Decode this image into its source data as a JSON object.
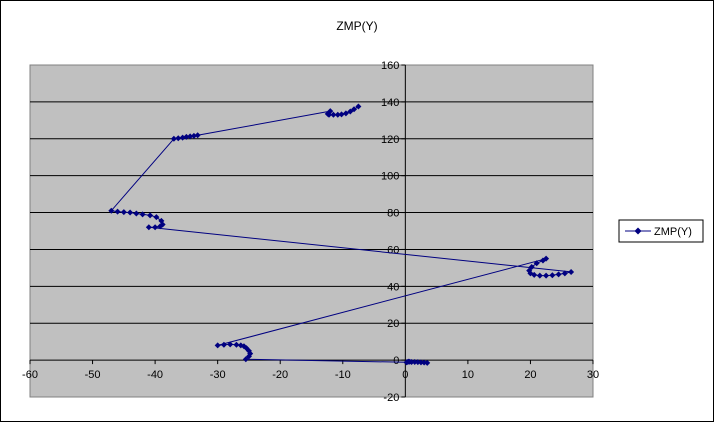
{
  "chart_data": {
    "type": "scatter",
    "title": "ZMP(Y)",
    "xlabel": "",
    "ylabel": "",
    "xlim": [
      -60,
      30
    ],
    "ylim": [
      -20,
      160
    ],
    "x_ticks": [
      -60,
      -50,
      -40,
      -30,
      -20,
      -10,
      0,
      10,
      20,
      30
    ],
    "y_ticks": [
      -20,
      0,
      20,
      40,
      60,
      80,
      100,
      120,
      140,
      160
    ],
    "grid": "horizontal",
    "legend": "right",
    "series": [
      {
        "name": "ZMP(Y)",
        "color": "#000080",
        "marker": "diamond",
        "x": [
          3.5,
          3.0,
          2.5,
          2.0,
          1.5,
          1.0,
          0.7,
          0.5,
          0.3,
          0.2,
          -25.5,
          -25.0,
          -24.8,
          -25.0,
          -25.4,
          -25.8,
          -26.3,
          -27.0,
          -28.0,
          -29.0,
          -30.0,
          22.5,
          22.0,
          21.0,
          20.2,
          19.8,
          20.0,
          20.6,
          21.5,
          22.5,
          23.5,
          24.5,
          25.5,
          26.5,
          -41.0,
          -40.0,
          -39.2,
          -38.8,
          -39.0,
          -39.8,
          -40.8,
          -42.0,
          -43.0,
          -44.0,
          -45.0,
          -46.0,
          -47.0,
          -37.0,
          -36.3,
          -35.6,
          -35.0,
          -34.4,
          -33.8,
          -33.2,
          -12.0,
          -12.4,
          -12.2,
          -11.5,
          -10.8,
          -10.2,
          -9.5,
          -8.8,
          -8.2,
          -7.5
        ],
        "y": [
          -1.5,
          -1.3,
          -1.2,
          -1.1,
          -1.0,
          -1.0,
          -0.9,
          -0.8,
          -1.0,
          -1.2,
          0.5,
          2.0,
          3.5,
          5.0,
          6.5,
          7.5,
          8.0,
          8.3,
          8.5,
          8.3,
          8.0,
          55.0,
          54.0,
          52.5,
          50.5,
          48.5,
          47.0,
          46.2,
          45.8,
          45.8,
          46.0,
          46.5,
          47.0,
          47.8,
          72.0,
          72.0,
          72.5,
          73.5,
          75.5,
          77.5,
          78.5,
          79.0,
          79.5,
          80.0,
          80.2,
          80.5,
          81.0,
          120.0,
          120.3,
          120.6,
          121.0,
          121.3,
          121.6,
          121.9,
          135.0,
          133.5,
          133.0,
          133.0,
          133.0,
          133.2,
          133.8,
          134.8,
          136.0,
          137.5
        ]
      }
    ]
  }
}
